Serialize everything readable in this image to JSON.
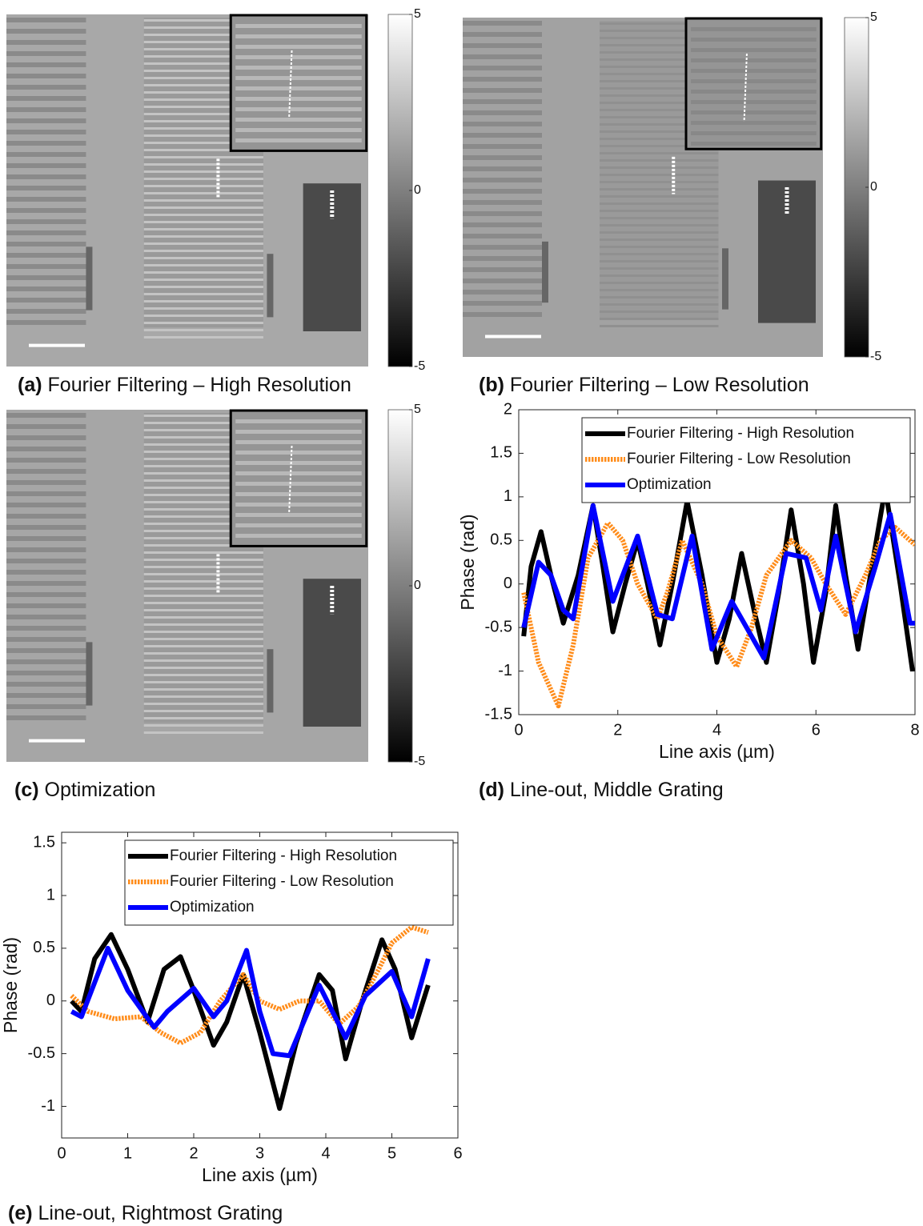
{
  "captions": [
    {
      "label": "(a)",
      "text": "Fourier Filtering – High Resolution"
    },
    {
      "label": "(b)",
      "text": "Fourier Filtering – Low Resolution"
    },
    {
      "label": "(c)",
      "text": "Optimization"
    },
    {
      "label": "(d)",
      "text": "Line-out, Middle Grating"
    },
    {
      "label": "(e)",
      "text": "Line-out, Rightmost Grating"
    }
  ],
  "images": [
    {
      "colorbar_lim": [
        -5,
        5
      ],
      "colorbar_ticks": [
        5,
        0,
        -5
      ]
    },
    {
      "colorbar_lim": [
        -5,
        5
      ],
      "colorbar_ticks": [
        5,
        0,
        -5
      ]
    },
    {
      "colorbar_lim": [
        -5,
        5
      ],
      "colorbar_ticks": [
        5,
        0,
        -5
      ]
    }
  ],
  "chart_data": [
    {
      "type": "line",
      "xlabel": "Line axis (µm)",
      "ylabel": "Phase (rad)",
      "xlim": [
        0,
        8
      ],
      "ylim": [
        -1.5,
        2
      ],
      "xticks": [
        0,
        2,
        4,
        6,
        8
      ],
      "yticks": [
        -1.5,
        -1,
        -0.5,
        0,
        0.5,
        1,
        1.5,
        2
      ],
      "legend": "upper right",
      "series": [
        {
          "name": "Fourier Filtering - High Resolution",
          "color": "#000000",
          "linestyle": "solid",
          "x": [
            0.1,
            0.25,
            0.45,
            0.65,
            0.9,
            1.2,
            1.5,
            1.7,
            1.9,
            2.15,
            2.4,
            2.6,
            2.85,
            3.1,
            3.4,
            3.7,
            4.0,
            4.25,
            4.5,
            4.75,
            5.0,
            5.25,
            5.5,
            5.75,
            5.95,
            6.2,
            6.4,
            6.6,
            6.85,
            7.1,
            7.4,
            7.7,
            7.95
          ],
          "values": [
            -0.6,
            0.2,
            0.6,
            0.1,
            -0.45,
            0.1,
            0.9,
            0.2,
            -0.55,
            0,
            0.5,
            0,
            -0.7,
            0,
            0.95,
            0.1,
            -0.9,
            -0.4,
            0.35,
            -0.3,
            -0.9,
            -0.1,
            0.85,
            0,
            -0.9,
            -0.1,
            0.9,
            0.1,
            -0.75,
            0.1,
            1.1,
            0,
            -1.0
          ]
        },
        {
          "name": "Fourier Filtering - Low Resolution",
          "color": "#ff8c1a",
          "linestyle": "dotted",
          "x": [
            0.1,
            0.4,
            0.8,
            1.1,
            1.4,
            1.8,
            2.1,
            2.4,
            2.8,
            3.0,
            3.3,
            3.7,
            4.0,
            4.4,
            4.7,
            5.0,
            5.5,
            5.9,
            6.2,
            6.6,
            7.0,
            7.3,
            7.6,
            8.0
          ],
          "values": [
            -0.1,
            -0.9,
            -1.4,
            -0.7,
            0.3,
            0.7,
            0.5,
            0,
            -0.4,
            -0.1,
            0.5,
            0,
            -0.6,
            -0.95,
            -0.5,
            0.1,
            0.5,
            0.3,
            0,
            -0.35,
            0.1,
            0.5,
            0.65,
            0.45
          ]
        },
        {
          "name": "Optimization",
          "color": "#0000ff",
          "linestyle": "solid",
          "x": [
            0.1,
            0.4,
            0.65,
            0.9,
            1.1,
            1.5,
            1.9,
            2.4,
            2.8,
            3.1,
            3.5,
            3.9,
            4.3,
            4.6,
            4.95,
            5.4,
            5.8,
            6.1,
            6.4,
            6.8,
            7.2,
            7.5,
            7.9,
            8.0
          ],
          "values": [
            -0.5,
            0.25,
            0.1,
            -0.3,
            -0.4,
            0.9,
            -0.2,
            0.55,
            -0.35,
            -0.4,
            0.55,
            -0.75,
            -0.2,
            -0.5,
            -0.85,
            0.35,
            0.3,
            -0.3,
            0.55,
            -0.55,
            0.2,
            0.8,
            -0.45,
            -0.45
          ]
        }
      ]
    },
    {
      "type": "line",
      "xlabel": "Line axis (µm)",
      "ylabel": "Phase (rad)",
      "xlim": [
        0,
        6
      ],
      "ylim": [
        -1.3,
        1.6
      ],
      "xticks": [
        0,
        1,
        2,
        3,
        4,
        5,
        6
      ],
      "yticks": [
        -1,
        -0.5,
        0,
        0.5,
        1,
        1.5
      ],
      "legend": "upper right",
      "series": [
        {
          "name": "Fourier Filtering - High Resolution",
          "color": "#000000",
          "linestyle": "solid",
          "x": [
            0.15,
            0.3,
            0.5,
            0.75,
            1.0,
            1.3,
            1.55,
            1.8,
            2.0,
            2.3,
            2.5,
            2.75,
            3.0,
            3.3,
            3.55,
            3.9,
            4.1,
            4.3,
            4.55,
            4.85,
            5.05,
            5.3,
            5.55
          ],
          "values": [
            0,
            -0.1,
            0.4,
            0.63,
            0.3,
            -0.2,
            0.3,
            0.42,
            0.1,
            -0.42,
            -0.2,
            0.25,
            -0.3,
            -1.02,
            -0.4,
            0.25,
            0.1,
            -0.55,
            0,
            0.58,
            0.3,
            -0.35,
            0.15
          ]
        },
        {
          "name": "Fourier Filtering - Low Resolution",
          "color": "#ff8c1a",
          "linestyle": "dotted",
          "x": [
            0.15,
            0.4,
            0.8,
            1.2,
            1.5,
            1.8,
            2.1,
            2.4,
            2.75,
            3.0,
            3.3,
            3.6,
            3.9,
            4.2,
            4.5,
            4.8,
            5.0,
            5.3,
            5.55
          ],
          "values": [
            0.05,
            -0.1,
            -0.17,
            -0.15,
            -0.3,
            -0.4,
            -0.3,
            0,
            0.25,
            0,
            -0.08,
            0,
            0,
            -0.22,
            -0.05,
            0.3,
            0.55,
            0.7,
            0.65
          ]
        },
        {
          "name": "Optimization",
          "color": "#0000ff",
          "linestyle": "solid",
          "x": [
            0.15,
            0.3,
            0.7,
            1.0,
            1.4,
            1.6,
            2.0,
            2.3,
            2.5,
            2.8,
            3.0,
            3.2,
            3.45,
            3.9,
            4.3,
            4.6,
            5.0,
            5.3,
            5.55
          ],
          "values": [
            -0.1,
            -0.15,
            0.5,
            0.1,
            -0.25,
            -0.1,
            0.12,
            -0.15,
            0,
            0.48,
            -0.1,
            -0.5,
            -0.52,
            0.15,
            -0.35,
            0.05,
            0.28,
            -0.15,
            0.4
          ]
        }
      ]
    }
  ]
}
